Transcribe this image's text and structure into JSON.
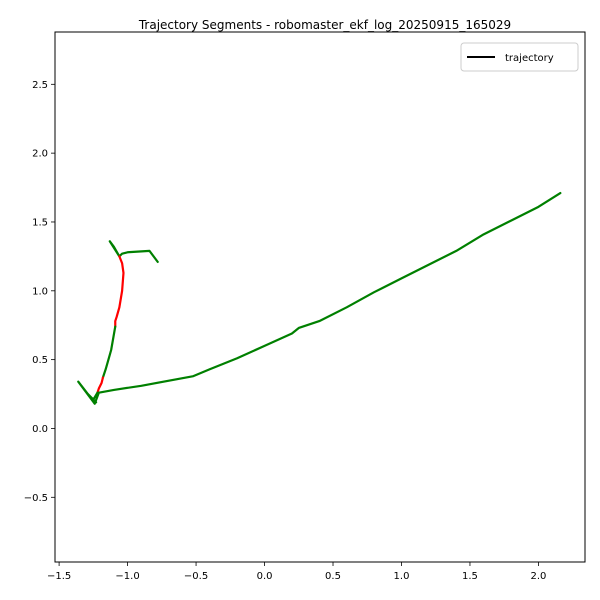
{
  "chart_data": {
    "type": "line",
    "title": "Trajectory Segments - robomaster_ekf_log_20250915_165029",
    "xlabel": "",
    "ylabel": "",
    "xlim": [
      -1.53,
      2.34
    ],
    "ylim": [
      -0.97,
      2.88
    ],
    "xticks": [
      -1.5,
      -1.0,
      -0.5,
      0.0,
      0.5,
      1.0,
      1.5,
      2.0
    ],
    "xtick_labels": [
      "−1.5",
      "−1.0",
      "−0.5",
      "0.0",
      "0.5",
      "1.0",
      "1.5",
      "2.0"
    ],
    "yticks": [
      -0.5,
      0.0,
      0.5,
      1.0,
      1.5,
      2.0,
      2.5
    ],
    "ytick_labels": [
      "−0.5",
      "0.0",
      "0.5",
      "1.0",
      "1.5",
      "2.0",
      "2.5"
    ],
    "grid": false,
    "legend": {
      "position": "top-right",
      "entries": [
        {
          "label": "trajectory",
          "color": "#000000"
        }
      ]
    },
    "series": [
      {
        "color": "#008000",
        "points": [
          [
            -0.78,
            1.21
          ],
          [
            -0.84,
            1.29
          ],
          [
            -1.0,
            1.28
          ],
          [
            -1.04,
            1.27
          ],
          [
            -1.06,
            1.25
          ],
          [
            -1.13,
            1.36
          ],
          [
            -1.1,
            1.32
          ],
          [
            -1.06,
            1.25
          ]
        ]
      },
      {
        "color": "#ff0000",
        "points": [
          [
            -1.06,
            1.25
          ],
          [
            -1.04,
            1.2
          ],
          [
            -1.03,
            1.13
          ],
          [
            -1.04,
            1.0
          ],
          [
            -1.06,
            0.88
          ],
          [
            -1.08,
            0.81
          ],
          [
            -1.09,
            0.78
          ],
          [
            -1.09,
            0.74
          ]
        ]
      },
      {
        "color": "#008000",
        "points": [
          [
            -1.09,
            0.74
          ],
          [
            -1.12,
            0.57
          ],
          [
            -1.14,
            0.5
          ],
          [
            -1.16,
            0.43
          ],
          [
            -1.18,
            0.37
          ]
        ]
      },
      {
        "color": "#ff0000",
        "points": [
          [
            -1.18,
            0.37
          ],
          [
            -1.19,
            0.33
          ],
          [
            -1.21,
            0.29
          ],
          [
            -1.22,
            0.26
          ]
        ]
      },
      {
        "color": "#008000",
        "points": [
          [
            -1.22,
            0.26
          ],
          [
            -1.25,
            0.21
          ],
          [
            -1.23,
            0.19
          ],
          [
            -1.29,
            0.25
          ],
          [
            -1.36,
            0.34
          ],
          [
            -1.24,
            0.18
          ],
          [
            -1.21,
            0.26
          ],
          [
            -1.1,
            0.28
          ],
          [
            -0.9,
            0.31
          ],
          [
            -0.52,
            0.38
          ],
          [
            -0.4,
            0.43
          ],
          [
            -0.2,
            0.51
          ],
          [
            0.0,
            0.6
          ],
          [
            0.2,
            0.69
          ],
          [
            0.25,
            0.73
          ],
          [
            0.4,
            0.78
          ],
          [
            0.6,
            0.88
          ],
          [
            0.8,
            0.99
          ],
          [
            1.0,
            1.09
          ],
          [
            1.2,
            1.19
          ],
          [
            1.4,
            1.29
          ],
          [
            1.6,
            1.41
          ],
          [
            1.8,
            1.51
          ],
          [
            2.0,
            1.61
          ],
          [
            2.16,
            1.71
          ]
        ]
      }
    ]
  }
}
